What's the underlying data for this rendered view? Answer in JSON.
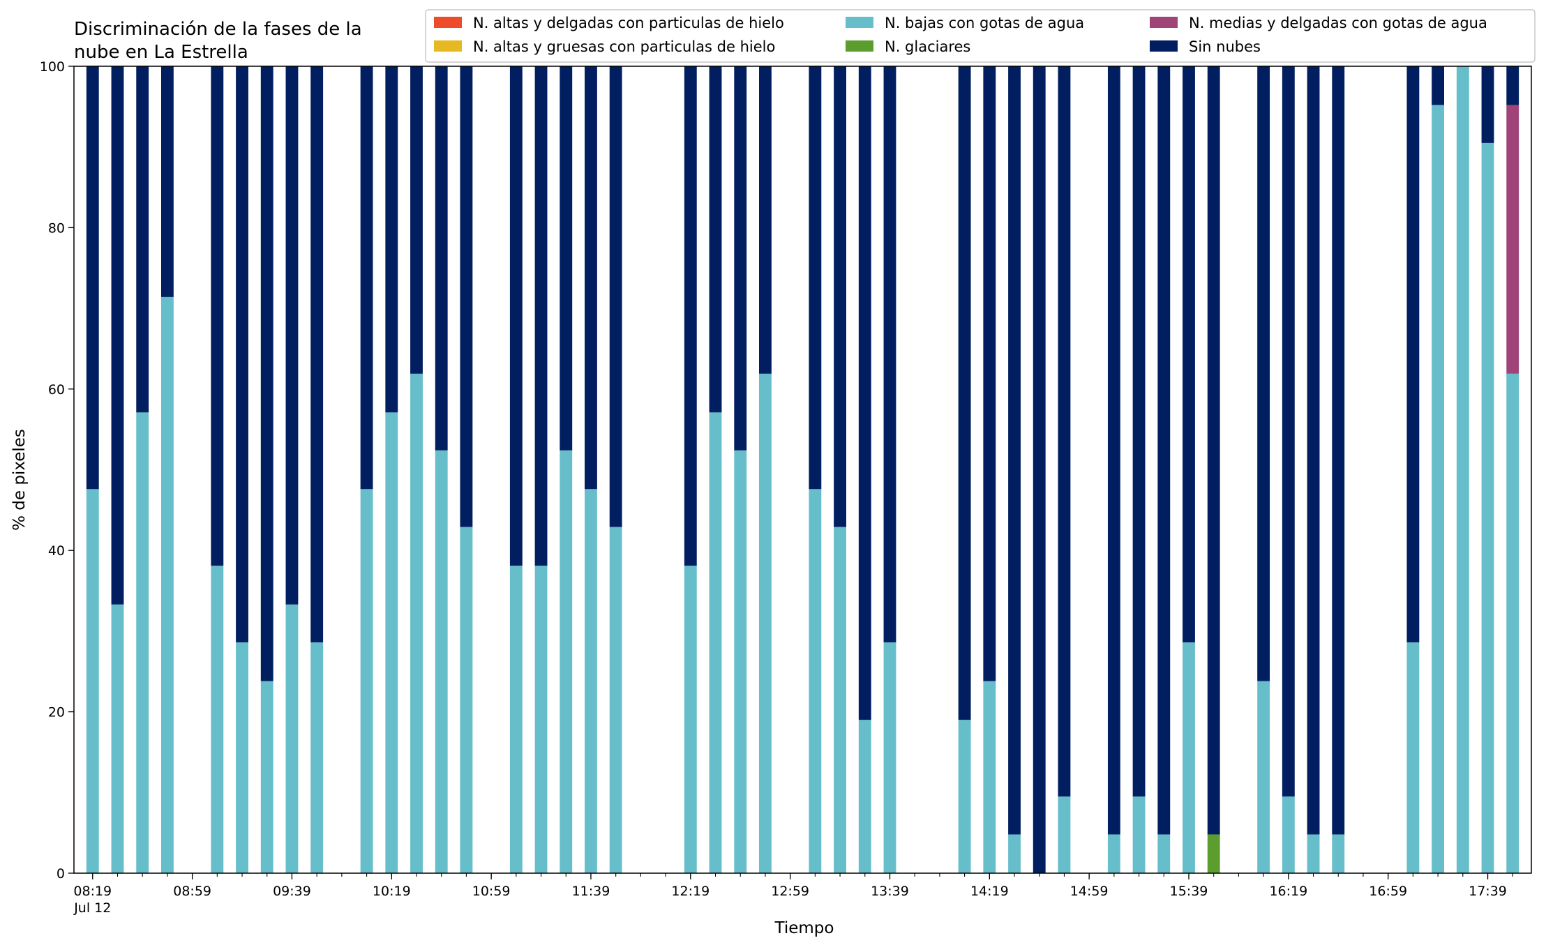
{
  "chart_data": {
    "type": "bar",
    "stacked": true,
    "title_lines": [
      "Discriminación de la fases de la",
      "nube en La Estrella"
    ],
    "xlabel": "Tiempo",
    "ylabel": "% de pixeles",
    "ylim": [
      0,
      100
    ],
    "yticks": [
      0,
      20,
      40,
      60,
      80,
      100
    ],
    "x_date_label": "Jul 12",
    "x_range_minutes": [
      "08:12",
      "17:49"
    ],
    "x_major_ticks": [
      "08:19",
      "08:59",
      "09:39",
      "10:19",
      "10:59",
      "11:39",
      "12:19",
      "12:59",
      "13:39",
      "14:19",
      "14:59",
      "15:39",
      "16:19",
      "16:59",
      "17:39"
    ],
    "x_minor_tick_step_minutes": 10,
    "bar_width_minutes": 5,
    "grid": false,
    "legend_placement": "top-right",
    "series": [
      {
        "name": "N. altas y delgadas con particulas de hielo",
        "color": "#EE4B2B"
      },
      {
        "name": "N. altas y gruesas con particulas de hielo",
        "color": "#E6B821"
      },
      {
        "name": "N. bajas con gotas de agua",
        "color": "#66BECA"
      },
      {
        "name": "N. glaciares",
        "color": "#5B9E2E"
      },
      {
        "name": "N. medias y delgadas con gotas de agua",
        "color": "#A04378"
      },
      {
        "name": "Sin nubes",
        "color": "#011F60"
      }
    ],
    "bars": [
      {
        "time": "08:19",
        "bajas": 47.6,
        "glaciares": 0,
        "medias": 0,
        "sin_nubes": 52.4
      },
      {
        "time": "08:29",
        "bajas": 33.3,
        "glaciares": 0,
        "medias": 0,
        "sin_nubes": 66.7
      },
      {
        "time": "08:39",
        "bajas": 57.1,
        "glaciares": 0,
        "medias": 0,
        "sin_nubes": 42.9
      },
      {
        "time": "08:49",
        "bajas": 71.4,
        "glaciares": 0,
        "medias": 0,
        "sin_nubes": 28.6
      },
      {
        "time": "09:09",
        "bajas": 38.1,
        "glaciares": 0,
        "medias": 0,
        "sin_nubes": 61.9
      },
      {
        "time": "09:19",
        "bajas": 28.6,
        "glaciares": 0,
        "medias": 0,
        "sin_nubes": 71.4
      },
      {
        "time": "09:29",
        "bajas": 23.8,
        "glaciares": 0,
        "medias": 0,
        "sin_nubes": 76.2
      },
      {
        "time": "09:39",
        "bajas": 33.3,
        "glaciares": 0,
        "medias": 0,
        "sin_nubes": 66.7
      },
      {
        "time": "09:49",
        "bajas": 28.6,
        "glaciares": 0,
        "medias": 0,
        "sin_nubes": 71.4
      },
      {
        "time": "10:09",
        "bajas": 47.6,
        "glaciares": 0,
        "medias": 0,
        "sin_nubes": 52.4
      },
      {
        "time": "10:19",
        "bajas": 57.1,
        "glaciares": 0,
        "medias": 0,
        "sin_nubes": 42.9
      },
      {
        "time": "10:29",
        "bajas": 61.9,
        "glaciares": 0,
        "medias": 0,
        "sin_nubes": 38.1
      },
      {
        "time": "10:39",
        "bajas": 52.4,
        "glaciares": 0,
        "medias": 0,
        "sin_nubes": 47.6
      },
      {
        "time": "10:49",
        "bajas": 42.9,
        "glaciares": 0,
        "medias": 0,
        "sin_nubes": 57.1
      },
      {
        "time": "11:09",
        "bajas": 38.1,
        "glaciares": 0,
        "medias": 0,
        "sin_nubes": 61.9
      },
      {
        "time": "11:19",
        "bajas": 38.1,
        "glaciares": 0,
        "medias": 0,
        "sin_nubes": 61.9
      },
      {
        "time": "11:29",
        "bajas": 52.4,
        "glaciares": 0,
        "medias": 0,
        "sin_nubes": 47.6
      },
      {
        "time": "11:39",
        "bajas": 47.6,
        "glaciares": 0,
        "medias": 0,
        "sin_nubes": 52.4
      },
      {
        "time": "11:49",
        "bajas": 42.9,
        "glaciares": 0,
        "medias": 0,
        "sin_nubes": 57.1
      },
      {
        "time": "12:19",
        "bajas": 38.1,
        "glaciares": 0,
        "medias": 0,
        "sin_nubes": 61.9
      },
      {
        "time": "12:29",
        "bajas": 57.1,
        "glaciares": 0,
        "medias": 0,
        "sin_nubes": 42.9
      },
      {
        "time": "12:39",
        "bajas": 52.4,
        "glaciares": 0,
        "medias": 0,
        "sin_nubes": 47.6
      },
      {
        "time": "12:49",
        "bajas": 61.9,
        "glaciares": 0,
        "medias": 0,
        "sin_nubes": 38.1
      },
      {
        "time": "13:09",
        "bajas": 47.6,
        "glaciares": 0,
        "medias": 0,
        "sin_nubes": 52.4
      },
      {
        "time": "13:19",
        "bajas": 42.9,
        "glaciares": 0,
        "medias": 0,
        "sin_nubes": 57.1
      },
      {
        "time": "13:29",
        "bajas": 19.0,
        "glaciares": 0,
        "medias": 0,
        "sin_nubes": 81.0
      },
      {
        "time": "13:39",
        "bajas": 28.6,
        "glaciares": 0,
        "medias": 0,
        "sin_nubes": 71.4
      },
      {
        "time": "14:09",
        "bajas": 19.0,
        "glaciares": 0,
        "medias": 0,
        "sin_nubes": 81.0
      },
      {
        "time": "14:19",
        "bajas": 23.8,
        "glaciares": 0,
        "medias": 0,
        "sin_nubes": 76.2
      },
      {
        "time": "14:29",
        "bajas": 4.8,
        "glaciares": 0,
        "medias": 0,
        "sin_nubes": 95.2
      },
      {
        "time": "14:39",
        "bajas": 0,
        "glaciares": 0,
        "medias": 0,
        "sin_nubes": 100
      },
      {
        "time": "14:49",
        "bajas": 9.5,
        "glaciares": 0,
        "medias": 0,
        "sin_nubes": 90.5
      },
      {
        "time": "15:09",
        "bajas": 4.8,
        "glaciares": 0,
        "medias": 0,
        "sin_nubes": 95.2
      },
      {
        "time": "15:19",
        "bajas": 9.5,
        "glaciares": 0,
        "medias": 0,
        "sin_nubes": 90.5
      },
      {
        "time": "15:29",
        "bajas": 4.8,
        "glaciares": 0,
        "medias": 0,
        "sin_nubes": 95.2
      },
      {
        "time": "15:39",
        "bajas": 28.6,
        "glaciares": 0,
        "medias": 0,
        "sin_nubes": 71.4
      },
      {
        "time": "15:49",
        "bajas": 0,
        "glaciares": 4.8,
        "medias": 0,
        "sin_nubes": 95.2
      },
      {
        "time": "16:09",
        "bajas": 23.8,
        "glaciares": 0,
        "medias": 0,
        "sin_nubes": 76.2
      },
      {
        "time": "16:19",
        "bajas": 9.5,
        "glaciares": 0,
        "medias": 0,
        "sin_nubes": 90.5
      },
      {
        "time": "16:29",
        "bajas": 4.8,
        "glaciares": 0,
        "medias": 0,
        "sin_nubes": 95.2
      },
      {
        "time": "16:39",
        "bajas": 4.8,
        "glaciares": 0,
        "medias": 0,
        "sin_nubes": 95.2
      },
      {
        "time": "17:09",
        "bajas": 28.6,
        "glaciares": 0,
        "medias": 0,
        "sin_nubes": 71.4
      },
      {
        "time": "17:19",
        "bajas": 95.2,
        "glaciares": 0,
        "medias": 0,
        "sin_nubes": 4.8
      },
      {
        "time": "17:29",
        "bajas": 100,
        "glaciares": 0,
        "medias": 0,
        "sin_nubes": 0
      },
      {
        "time": "17:39",
        "bajas": 90.5,
        "glaciares": 0,
        "medias": 0,
        "sin_nubes": 9.5
      },
      {
        "time": "17:49",
        "bajas": 61.9,
        "glaciares": 0,
        "medias": 33.3,
        "sin_nubes": 4.8
      }
    ]
  }
}
